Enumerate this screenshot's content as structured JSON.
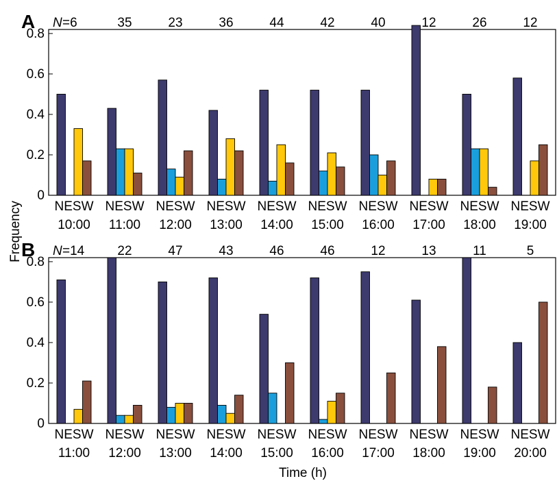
{
  "chart_data": [
    {
      "type": "bar",
      "panel": "A",
      "n_prefix": "N",
      "counts": [
        "=6",
        "35",
        "23",
        "36",
        "44",
        "42",
        "40",
        "12",
        "26",
        "12"
      ],
      "categories": [
        "10:00",
        "11:00",
        "12:00",
        "13:00",
        "14:00",
        "15:00",
        "16:00",
        "17:00",
        "18:00",
        "19:00"
      ],
      "bar_label": "NESW",
      "series": [
        {
          "name": "N",
          "color": "#3d3a6e",
          "values": [
            0.5,
            0.43,
            0.57,
            0.42,
            0.52,
            0.52,
            0.52,
            0.84,
            0.5,
            0.58
          ]
        },
        {
          "name": "E",
          "color": "#1a9fdc",
          "values": [
            0.0,
            0.23,
            0.13,
            0.08,
            0.07,
            0.12,
            0.2,
            0.0,
            0.23,
            0.0
          ]
        },
        {
          "name": "S",
          "color": "#ffc80a",
          "values": [
            0.33,
            0.23,
            0.09,
            0.28,
            0.25,
            0.21,
            0.1,
            0.08,
            0.23,
            0.17
          ]
        },
        {
          "name": "W",
          "color": "#8a4f3d",
          "values": [
            0.17,
            0.11,
            0.22,
            0.22,
            0.16,
            0.14,
            0.17,
            0.08,
            0.04,
            0.25
          ]
        }
      ],
      "yticks": [
        "0",
        "0.2",
        "0.4",
        "0.6",
        "0.8"
      ],
      "ylim": [
        0,
        0.82
      ]
    },
    {
      "type": "bar",
      "panel": "B",
      "n_prefix": "N",
      "counts": [
        "=14",
        "22",
        "47",
        "43",
        "46",
        "46",
        "12",
        "13",
        "11",
        "5"
      ],
      "categories": [
        "11:00",
        "12:00",
        "13:00",
        "14:00",
        "15:00",
        "16:00",
        "17:00",
        "18:00",
        "19:00",
        "20:00"
      ],
      "bar_label": "NESW",
      "series": [
        {
          "name": "N",
          "color": "#3d3a6e",
          "values": [
            0.71,
            0.82,
            0.7,
            0.72,
            0.54,
            0.72,
            0.75,
            0.61,
            0.82,
            0.4
          ]
        },
        {
          "name": "E",
          "color": "#1a9fdc",
          "values": [
            0.0,
            0.04,
            0.08,
            0.09,
            0.15,
            0.02,
            0.0,
            0.0,
            0.0,
            0.0
          ]
        },
        {
          "name": "S",
          "color": "#ffc80a",
          "values": [
            0.07,
            0.04,
            0.1,
            0.05,
            0.0,
            0.11,
            0.0,
            0.0,
            0.0,
            0.0
          ]
        },
        {
          "name": "W",
          "color": "#8a4f3d",
          "values": [
            0.21,
            0.09,
            0.1,
            0.14,
            0.3,
            0.15,
            0.25,
            0.38,
            0.18,
            0.6
          ]
        }
      ],
      "yticks": [
        "0",
        "0.2",
        "0.4",
        "0.6",
        "0.8"
      ],
      "ylim": [
        0,
        0.82
      ]
    }
  ],
  "axes": {
    "ylabel": "Frequency",
    "xlabel": "Time (h)"
  }
}
